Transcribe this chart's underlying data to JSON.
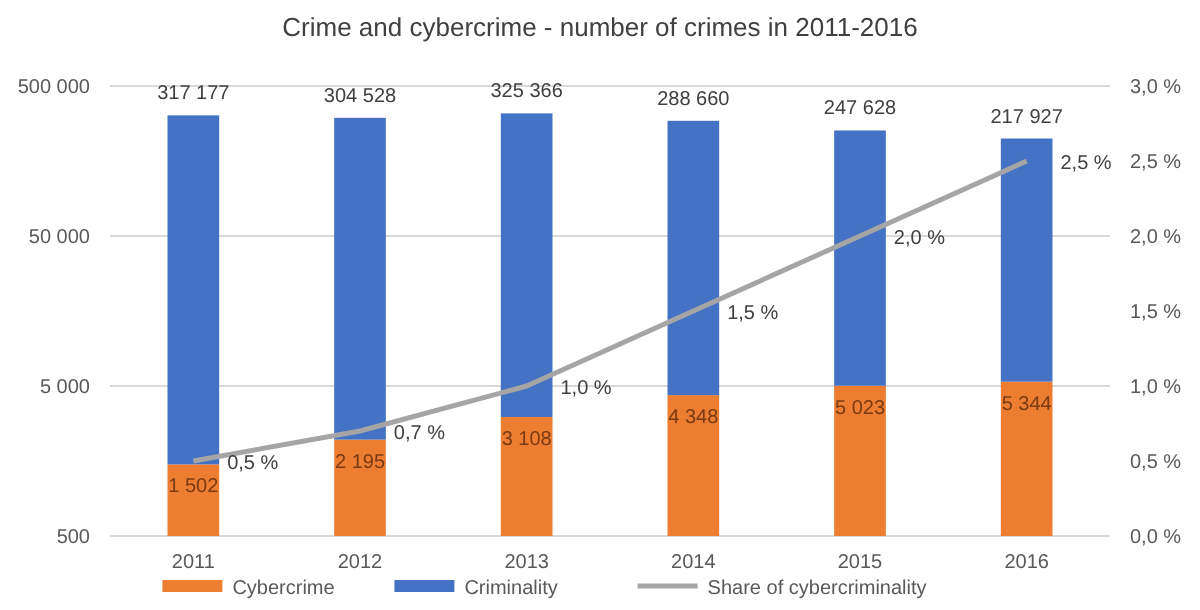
{
  "chart_data": {
    "type": "bar",
    "title": "Crime and cybercrime - number of crimes in 2011-2016",
    "categories": [
      "2011",
      "2012",
      "2013",
      "2014",
      "2015",
      "2016"
    ],
    "stacked": true,
    "log": "y",
    "grid": "y",
    "legend": "bottom",
    "series": [
      {
        "name": "Cybercrime",
        "color": "#ed7d31",
        "values": [
          1502,
          2195,
          3108,
          4348,
          5023,
          5344
        ],
        "value_labels": [
          "1 502",
          "2 195",
          "3 108",
          "4 348",
          "5 023",
          "5 344"
        ]
      },
      {
        "name": "Criminality",
        "color": "#4472c4",
        "values": [
          317177,
          304528,
          325366,
          288660,
          247628,
          217927
        ],
        "value_labels": [
          "317 177",
          "304 528",
          "325 366",
          "288 660",
          "247 628",
          "217 927"
        ]
      },
      {
        "name": "Share of cybercriminality",
        "type": "line",
        "axis": "y2",
        "color": "#a5a5a5",
        "values": [
          0.5,
          0.7,
          1.0,
          1.5,
          2.0,
          2.5
        ],
        "value_labels": [
          "0,5 %",
          "0,7 %",
          "1,0 %",
          "1,5 %",
          "2,0 %",
          "2,5 %"
        ]
      }
    ],
    "ylim": [
      500,
      500000
    ],
    "yticks": [
      500,
      {
        "value": 5000,
        "label": "5 000"
      },
      {
        "value": 50000,
        "label": "50 000"
      },
      {
        "value": 500000,
        "label": "500 000"
      }
    ],
    "y2lim": [
      0,
      3
    ],
    "y2ticks": [
      {
        "value": 0,
        "label": "0,0 %"
      },
      {
        "value": 0.5,
        "label": "0,5 %"
      },
      {
        "value": 1,
        "label": "1,0 %"
      },
      {
        "value": 1.5,
        "label": "1,5 %"
      },
      {
        "value": 2,
        "label": "2,0 %"
      },
      {
        "value": 2.5,
        "label": "2,5 %"
      },
      {
        "value": 3,
        "label": "3,0 %"
      }
    ]
  }
}
